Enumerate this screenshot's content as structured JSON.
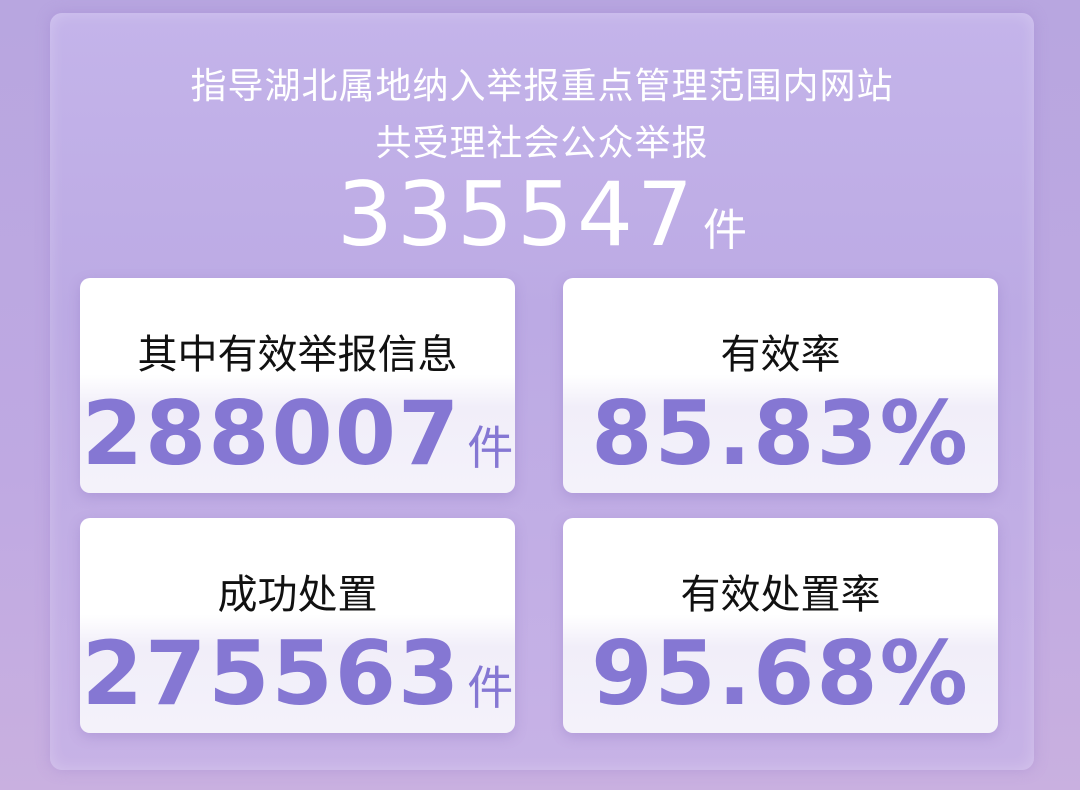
{
  "header": {
    "line1": "指导湖北属地纳入举报重点管理范围内网站",
    "line2": "共受理社会公众举报",
    "total": "335547",
    "unit": "件"
  },
  "cards": [
    {
      "label": "其中有效举报信息",
      "value": "288007",
      "unit": "件"
    },
    {
      "label": "有效率",
      "value": "85.83%",
      "unit": ""
    },
    {
      "label": "成功处置",
      "value": "275563",
      "unit": "件"
    },
    {
      "label": "有效处置率",
      "value": "95.68%",
      "unit": ""
    }
  ],
  "colors": {
    "background": "#b9a6e0",
    "accent": "#8577d3"
  }
}
